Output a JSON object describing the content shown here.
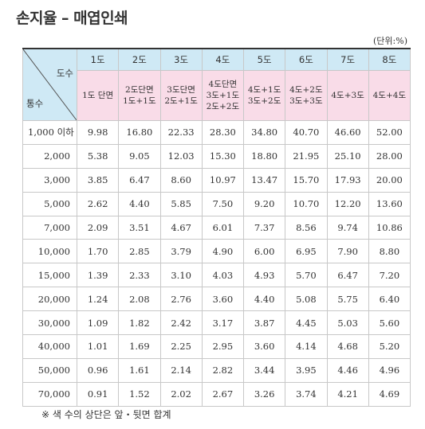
{
  "title": "손지율 – 매엽인쇄",
  "unit": "(단위:%)",
  "corner": {
    "top": "도수",
    "bottom": "통수"
  },
  "headers_top": [
    "1도",
    "2도",
    "3도",
    "4도",
    "5도",
    "6도",
    "7도",
    "8도"
  ],
  "headers_sub": [
    [
      "1도 단면"
    ],
    [
      "2도단면",
      "1도+1도"
    ],
    [
      "3도단면",
      "2도+1도"
    ],
    [
      "4도단면",
      "3도+1도",
      "2도+2도"
    ],
    [
      "4도+1도",
      "3도+2도"
    ],
    [
      "4도+2도",
      "3도+3도"
    ],
    [
      "4도+3도"
    ],
    [
      "4도+4도"
    ]
  ],
  "rows": [
    {
      "label": "1,000 이하",
      "values": [
        "9.98",
        "16.80",
        "22.33",
        "28.30",
        "34.80",
        "40.70",
        "46.60",
        "52.00"
      ]
    },
    {
      "label": "2,000",
      "values": [
        "5.38",
        "9.05",
        "12.03",
        "15.30",
        "18.80",
        "21.95",
        "25.10",
        "28.00"
      ]
    },
    {
      "label": "3,000",
      "values": [
        "3.85",
        "6.47",
        "8.60",
        "10.97",
        "13.47",
        "15.70",
        "17.93",
        "20.00"
      ]
    },
    {
      "label": "5,000",
      "values": [
        "2.62",
        "4.40",
        "5.85",
        "7.50",
        "9.20",
        "10.70",
        "12.20",
        "13.60"
      ]
    },
    {
      "label": "7,000",
      "values": [
        "2.09",
        "3.51",
        "4.67",
        "6.01",
        "7.37",
        "8.56",
        "9.74",
        "10.86"
      ]
    },
    {
      "label": "10,000",
      "values": [
        "1.70",
        "2.85",
        "3.79",
        "4.90",
        "6.00",
        "6.95",
        "7.90",
        "8.80"
      ]
    },
    {
      "label": "15,000",
      "values": [
        "1.39",
        "2.33",
        "3.10",
        "4.03",
        "4.93",
        "5.70",
        "6.47",
        "7.20"
      ]
    },
    {
      "label": "20,000",
      "values": [
        "1.24",
        "2.08",
        "2.76",
        "3.60",
        "4.40",
        "5.08",
        "5.75",
        "6.40"
      ]
    },
    {
      "label": "30,000",
      "values": [
        "1.09",
        "1.82",
        "2.42",
        "3.17",
        "3.87",
        "4.45",
        "5.03",
        "5.60"
      ]
    },
    {
      "label": "40,000",
      "values": [
        "1.01",
        "1.69",
        "2.25",
        "2.95",
        "3.60",
        "4.14",
        "4.68",
        "5.20"
      ]
    },
    {
      "label": "50,000",
      "values": [
        "0.96",
        "1.61",
        "2.14",
        "2.82",
        "3.44",
        "3.95",
        "4.46",
        "4.96"
      ]
    },
    {
      "label": "70,000",
      "values": [
        "0.91",
        "1.52",
        "2.02",
        "2.67",
        "3.26",
        "3.74",
        "4.21",
        "4.69"
      ]
    }
  ],
  "note": "※ 색 수의 상단은 앞・뒷면 합계",
  "colors": {
    "header_top_bg": "#cfe9f5",
    "header_sub_bg": "#f9dce8",
    "rule": "#333333"
  }
}
